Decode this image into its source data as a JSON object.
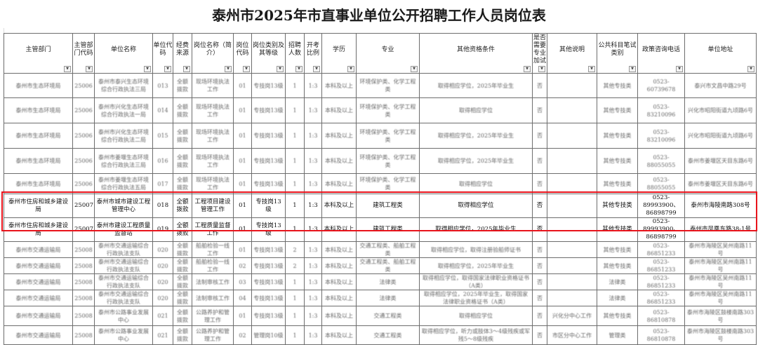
{
  "title": "泰州市2025年市直事业单位公开招聘工作人员岗位表",
  "headers": [
    "主管部门",
    "主管部门代码",
    "单位名称",
    "单位代码",
    "经费来源",
    "岗位名称（简介）",
    "岗位代码",
    "岗位类别及其等级",
    "招聘人数",
    "开考比例",
    "学历",
    "专业",
    "其他资格条件",
    "是否需要专业加试",
    "其他说明",
    "公共科目笔试类别",
    "政策咨询电话",
    "单位地址"
  ],
  "filter_icon": "dropdown-arrow-icon",
  "highlight_color": "#e8131b",
  "rows": [
    {
      "highlighted": false,
      "cells": [
        "泰州市生态环境局",
        "25006",
        "泰州市泰兴生态环境综合行政执法三局",
        "013",
        "全额拨款",
        "现场环境执法工作",
        "01",
        "专技岗13级",
        "1",
        "1:3",
        "本科及以上",
        "环境保护类、化学工程类",
        "取得相应学位，2025年毕业生",
        "否",
        "",
        "其他专技类",
        "0523-60739678",
        "泰兴市文昌中路29号"
      ]
    },
    {
      "highlighted": false,
      "cells": [
        "泰州市生态环境局",
        "25006",
        "泰州市兴化生态环境综合行政执法一局",
        "014",
        "全额拨款",
        "现场环境执法工作",
        "01",
        "专技岗13级",
        "1",
        "1:3",
        "本科及以上",
        "环境保护类、化学工程类",
        "取得相应学位",
        "否",
        "",
        "其他专技类",
        "0523-83210096",
        "兴化市昭阳街道九顷路6号"
      ]
    },
    {
      "highlighted": false,
      "cells": [
        "泰州市生态环境局",
        "25006",
        "泰州市兴化生态环境综合行政执法二局",
        "015",
        "全额拨款",
        "现场环境执法工作",
        "01",
        "专技岗13级",
        "1",
        "1:3",
        "本科及以上",
        "环境保护类、化学工程类",
        "取得相应学位，2025年毕业生",
        "否",
        "",
        "其他专技类",
        "0523-83210096",
        "兴化市昭阳街道九顷路6号"
      ]
    },
    {
      "highlighted": false,
      "cells": [
        "泰州市生态环境局",
        "25006",
        "泰州市姜堰生态环境综合行政执法三局",
        "016",
        "全额拨款",
        "现场环境执法工作",
        "01",
        "专技岗13级",
        "1",
        "1:3",
        "本科及以上",
        "环境保护类、化学工程类",
        "取得相应学位，2025年毕业生",
        "否",
        "",
        "其他专技类",
        "0523-88055055",
        "泰州市姜堰区天目东路6号"
      ]
    },
    {
      "highlighted": false,
      "cells": [
        "泰州市生态环境局",
        "25006",
        "泰州市姜堰生态环境综合行政执法五局",
        "017",
        "全额拨款",
        "现场环境执法工作",
        "01",
        "专技岗13级",
        "1",
        "1:3",
        "本科及以上",
        "环境保护类、化学工程类",
        "取得相应学位",
        "否",
        "",
        "其他专技类",
        "0523-88055055",
        "泰州市姜堰区天目东路6号"
      ]
    },
    {
      "highlighted": true,
      "cells": [
        "泰州市住房和城乡建设局",
        "25007",
        "泰州市城市建设工程管理中心",
        "018",
        "全额拨款",
        "工程项目建设管理工作",
        "01",
        "专技岗13级",
        "1",
        "1:3",
        "本科及以上",
        "建筑工程类",
        "取得相应学位",
        "否",
        "",
        "其他专技类",
        "0523-89993900、86898799",
        "泰州市海陵南路308号"
      ]
    },
    {
      "highlighted": true,
      "cells": [
        "泰州市住房和城乡建设局",
        "25007",
        "泰州市建设工程质量监督站",
        "019",
        "全额拨款",
        "工程质量监督工作",
        "01",
        "专技岗13级",
        "1",
        "1:3",
        "本科及以上",
        "建筑工程类",
        "取得相应学位，2025年毕业生",
        "否",
        "",
        "其他专技类",
        "0523-89993900、86898799",
        "泰州市凤凰东路38-1号"
      ]
    },
    {
      "highlighted": false,
      "cells": [
        "泰州市交通运输局",
        "25008",
        "泰州市交通运输综合行政执法支队",
        "020",
        "全额拨款",
        "船舶检验一线工作",
        "01",
        "专技岗13级",
        "2",
        "1:3",
        "本科及以上",
        "交通工程类、船舶工程类",
        "取得相应学位，取得注册验船师证书",
        "否",
        "",
        "其他专技类",
        "0523-86851233",
        "泰州市海陵区吴州南路11号"
      ]
    },
    {
      "highlighted": false,
      "cells": [
        "泰州市交通运输局",
        "25008",
        "泰州市交通运输综合行政执法支队",
        "020",
        "全额拨款",
        "船舶检验一线工作",
        "02",
        "专技岗13级",
        "2",
        "1:3",
        "本科及以上",
        "交通工程类、船舶工程类",
        "取得相应学位，2025年毕业生",
        "否",
        "",
        "其他专技类",
        "0523-86851233",
        "泰州市海陵区吴州南路11号"
      ]
    },
    {
      "highlighted": false,
      "cells": [
        "泰州市交通运输局",
        "25008",
        "泰州市交通运输综合行政执法支队",
        "020",
        "全额拨款",
        "法制审核工作",
        "03",
        "专技岗13级",
        "1",
        "1:3",
        "本科及以上",
        "法律类",
        "取得相应学位，取得国家法律职业资格证书（A类）",
        "否",
        "",
        "法律类",
        "0523-86851233",
        "泰州市海陵区吴州南路11号"
      ]
    },
    {
      "highlighted": false,
      "cells": [
        "泰州市交通运输局",
        "25008",
        "泰州市交通运输综合行政执法支队",
        "020",
        "全额拨款",
        "法制审核工作",
        "04",
        "专技岗13级",
        "1",
        "1:3",
        "本科及以上",
        "法律类",
        "取得相应学位，2025年毕业生，取得国家法律职业资格证书（A类）",
        "否",
        "",
        "法律类",
        "0523-86851233",
        "泰州市海陵区吴州南路11号"
      ]
    },
    {
      "highlighted": false,
      "cells": [
        "泰州市交通运输局",
        "25008",
        "泰州市公路事业发展中心",
        "021",
        "全额拨款",
        "公路养护和管理工作",
        "01",
        "专技岗13级",
        "1",
        "1:3",
        "本科及以上",
        "交通工程类",
        "取得相应学位",
        "否",
        "兴化分中心工作",
        "其他专技类",
        "0523-86810878",
        "泰州市海陵区鼓楼南路303号"
      ]
    },
    {
      "highlighted": false,
      "cells": [
        "泰州市交通运输局",
        "25008",
        "泰州市公路事业发展中心",
        "021",
        "全额拨款",
        "公路养护和管理工作",
        "02",
        "管理岗10级",
        "1",
        "1:3",
        "本科及以上",
        "交通工程类",
        "取得相应学位，听力或肢体3～4级残疾或军残5～8级残疾",
        "否",
        "市区分中心工作",
        "管理类",
        "0523-86810878",
        "泰州市海陵区鼓楼南路303号"
      ]
    }
  ]
}
